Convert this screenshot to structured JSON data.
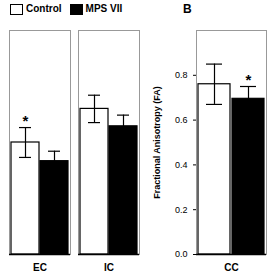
{
  "chart_data": [
    {
      "type": "bar",
      "categories": [
        "EC",
        "IC"
      ],
      "series": [
        {
          "name": "Control",
          "color": "#ffffff",
          "values": [
            0.45,
            0.585
          ],
          "errors": [
            0.06,
            0.055
          ]
        },
        {
          "name": "MPS VII",
          "color": "#000000",
          "values": [
            0.375,
            0.515
          ],
          "errors": [
            0.04,
            0.045
          ]
        }
      ],
      "ylim": [
        0.0,
        0.9
      ],
      "yticks": [],
      "tick_labels": "x",
      "legend": "upper left",
      "annotations": [
        {
          "text": "*",
          "category": "EC",
          "series": "Control"
        }
      ]
    },
    {
      "type": "bar",
      "categories": [
        "CC"
      ],
      "series": [
        {
          "name": "Control",
          "color": "#ffffff",
          "values": [
            0.76
          ],
          "errors": [
            0.09
          ]
        },
        {
          "name": "MPS VII",
          "color": "#000000",
          "values": [
            0.695
          ],
          "errors": [
            0.055
          ]
        }
      ],
      "ylabel": "Fractional Anisotropy (FA)",
      "ylim": [
        0.0,
        1.0
      ],
      "yticks": [
        {
          "value": 0.0,
          "label": "0.0"
        },
        0.2,
        0.4,
        0.6,
        0.8
      ],
      "annotations": [
        {
          "text": "B"
        },
        {
          "text": "*",
          "category": "CC",
          "series": "MPS VII"
        }
      ]
    }
  ]
}
